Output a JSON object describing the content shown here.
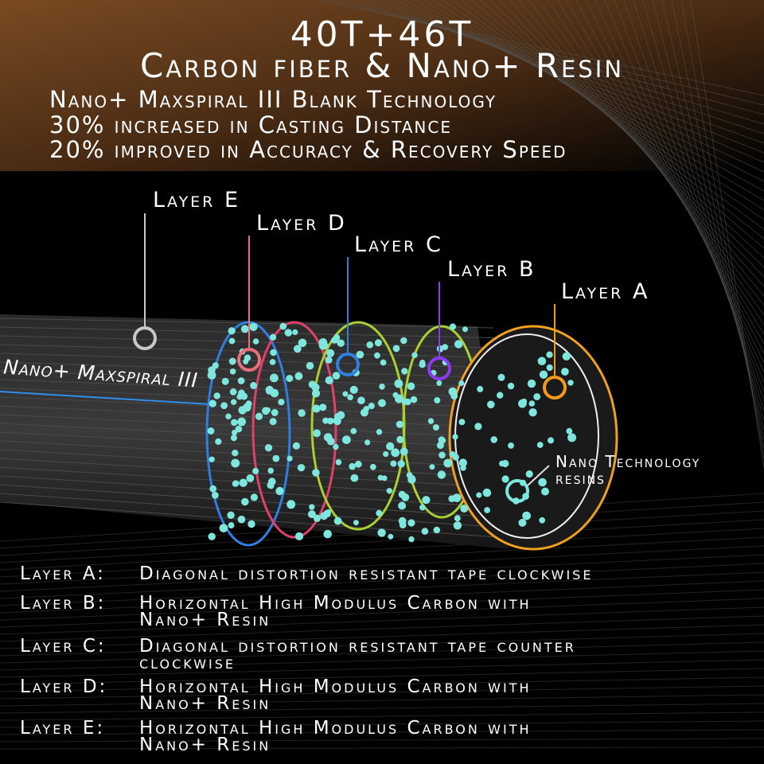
{
  "header": {
    "title": "40T+46T",
    "subtitle": "Carbon fiber & Nano+ Resin",
    "features": [
      "Nano+ Maxspiral III Blank Technology",
      "30% increased in Casting Distance",
      "20% improved in Accuracy & Recovery Speed"
    ]
  },
  "diagram": {
    "rod_label": "Nano+ Maxspiral III",
    "nano_label": [
      "Nano Technology",
      "resins"
    ],
    "layers": [
      {
        "label": "Layer E",
        "color": "#c8c8c8"
      },
      {
        "label": "Layer D",
        "color": "#e8707a"
      },
      {
        "label": "Layer C",
        "color": "#2f7fe0"
      },
      {
        "label": "Layer B",
        "color": "#8a3cf0"
      },
      {
        "label": "Layer A",
        "color": "#f39a1c"
      }
    ],
    "nano_color": "#7ee6dc"
  },
  "descriptions": [
    {
      "key": "Layer A:",
      "lines": [
        "Diagonal distortion resistant tape clockwise"
      ]
    },
    {
      "key": "Layer B:",
      "lines": [
        "Horizontal High Modulus Carbon with",
        "Nano+ Resin"
      ]
    },
    {
      "key": "Layer C:",
      "lines": [
        "Diagonal distortion resistant tape counter",
        "clockwise"
      ]
    },
    {
      "key": "Layer D:",
      "lines": [
        "Horizontal High Modulus Carbon with",
        "Nano+ Resin"
      ]
    },
    {
      "key": "Layer E:",
      "lines": [
        "Horizontal High Modulus Carbon with",
        "Nano+ Resin"
      ]
    }
  ]
}
